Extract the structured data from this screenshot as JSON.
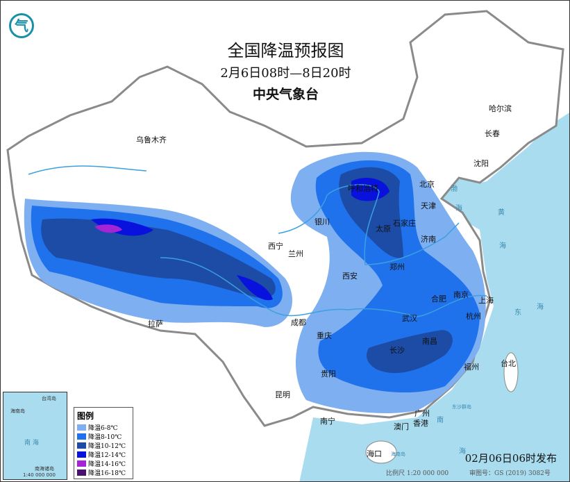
{
  "title": "全国降温预报图",
  "period": "2月6日08时—8日20时",
  "agency": "中央气象台",
  "logo_text": "气",
  "issued": "02月06日06时发布",
  "scale": "比例尺 1:20 000 000",
  "review_no": "审图号：GS (2019) 3082号",
  "legend": {
    "title": "图例",
    "items": [
      {
        "label": "降温6-8℃",
        "color": "#7eaff0"
      },
      {
        "label": "降温8-10℃",
        "color": "#1f72ec"
      },
      {
        "label": "降温10-12℃",
        "color": "#1c4ca6"
      },
      {
        "label": "降温12-14℃",
        "color": "#0812dc"
      },
      {
        "label": "降温14-16℃",
        "color": "#a424d6"
      },
      {
        "label": "降温16-18℃",
        "color": "#4a1070"
      }
    ]
  },
  "inset": {
    "labels": [
      "台湾岛",
      "海南岛",
      "南  海",
      "南海诸岛"
    ],
    "scale": "1:40 000 000"
  },
  "colors": {
    "sea": "#a9dcef",
    "land": "#ffffff",
    "river": "#3aa0e0",
    "border": "#8a8a8a"
  },
  "cities": [
    "乌鲁木齐",
    "哈尔滨",
    "长春",
    "沈阳",
    "北京",
    "天津",
    "呼和浩特",
    "石家庄",
    "太原",
    "银川",
    "济南",
    "西宁",
    "兰州",
    "郑州",
    "西安",
    "合肥",
    "南京",
    "上海",
    "成都",
    "武汉",
    "杭州",
    "重庆",
    "长沙",
    "南昌",
    "拉萨",
    "福州",
    "台北",
    "贵阳",
    "昆明",
    "南宁",
    "广州",
    "香港",
    "澳门",
    "海口"
  ],
  "sea_labels": [
    "渤",
    "海",
    "黄",
    "海",
    "东",
    "海",
    "南",
    "海",
    "东沙群岛",
    "海南岛"
  ]
}
